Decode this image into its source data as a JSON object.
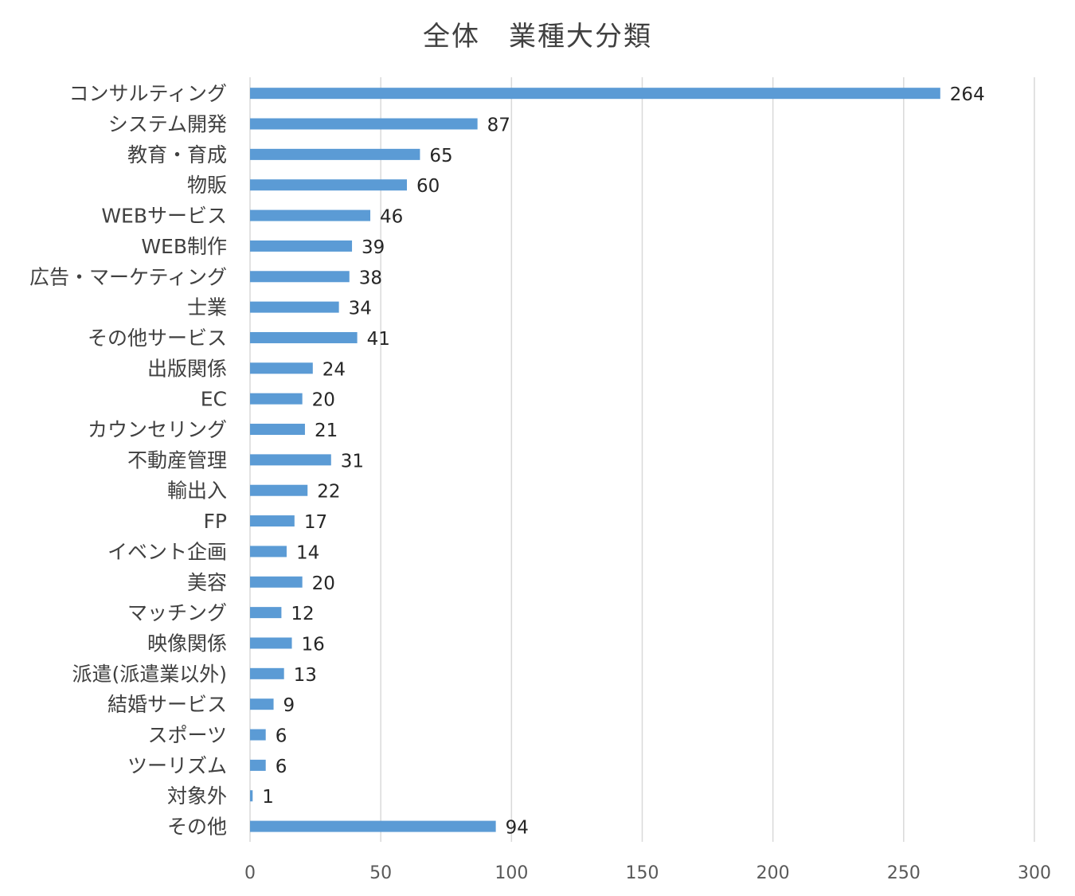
{
  "chart_data": {
    "type": "bar",
    "orientation": "horizontal",
    "title": "全体　業種大分類",
    "xlabel": "",
    "ylabel": "",
    "xlim": [
      0,
      300
    ],
    "x_ticks": [
      "0",
      "50",
      "100",
      "150",
      "200",
      "250",
      "300"
    ],
    "tick_values": [
      0,
      50,
      100,
      150,
      200,
      250,
      300
    ],
    "grid": true,
    "legend": "none",
    "bar_color": "#5b9bd5",
    "categories": [
      "コンサルティング",
      "システム開発",
      "教育・育成",
      "物販",
      "WEBサービス",
      "WEB制作",
      "広告・マーケティング",
      "士業",
      "その他サービス",
      "出版関係",
      "EC",
      "カウンセリング",
      "不動産管理",
      "輸出入",
      "FP",
      "イベント企画",
      "美容",
      "マッチング",
      "映像関係",
      "派遣(派遣業以外)",
      "結婚サービス",
      "スポーツ",
      "ツーリズム",
      "対象外",
      "その他"
    ],
    "values": [
      264,
      87,
      65,
      60,
      46,
      39,
      38,
      34,
      41,
      24,
      20,
      21,
      31,
      22,
      17,
      14,
      20,
      12,
      16,
      13,
      9,
      6,
      6,
      1,
      94
    ],
    "data_labels": [
      "264",
      "87",
      "65",
      "60",
      "46",
      "39",
      "38",
      "34",
      "41",
      "24",
      "20",
      "21",
      "31",
      "22",
      "17",
      "14",
      "20",
      "12",
      "16",
      "13",
      "9",
      "6",
      "6",
      "1",
      "94"
    ]
  }
}
